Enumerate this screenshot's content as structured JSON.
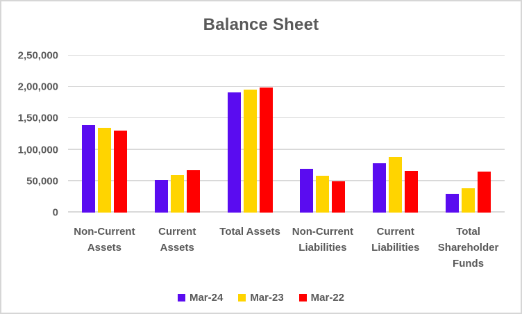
{
  "title": "Balance Sheet",
  "colors": {
    "text": "#595959",
    "gridline": "#d9d9d9",
    "frame_border": "#d6d6d6"
  },
  "chart_data": {
    "type": "bar",
    "title": "Balance Sheet",
    "categories": [
      "Non-Current Assets",
      "Current Assets",
      "Total Assets",
      "Non-Current Liabilities",
      "Current Liabilities",
      "Total Shareholder Funds"
    ],
    "series": [
      {
        "name": "Mar-24",
        "color": "#5a0cf0",
        "values": [
          139000,
          52000,
          191000,
          70000,
          79000,
          30000
        ]
      },
      {
        "name": "Mar-23",
        "color": "#ffd400",
        "values": [
          135000,
          60000,
          196000,
          59000,
          89000,
          39000
        ]
      },
      {
        "name": "Mar-22",
        "color": "#ff0000",
        "values": [
          130000,
          68000,
          199000,
          50000,
          66000,
          65000
        ]
      }
    ],
    "xlabel": "",
    "ylabel": "",
    "ylim": [
      0,
      250000
    ],
    "ytick_step": 50000,
    "ytick_labels": [
      "0",
      "50,000",
      "1,00,000",
      "1,50,000",
      "2,00,000",
      "2,50,000"
    ],
    "grid": true,
    "legend_position": "bottom"
  }
}
